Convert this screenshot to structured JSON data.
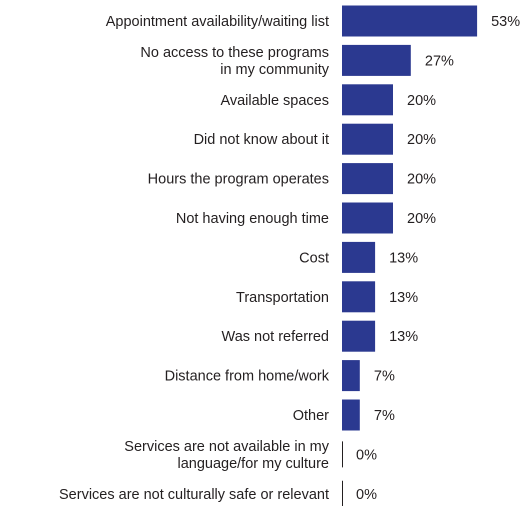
{
  "chart_data": {
    "type": "bar",
    "orientation": "horizontal",
    "categories": [
      [
        "Appointment availability/waiting list"
      ],
      [
        "No access to these programs",
        "in my community"
      ],
      [
        "Available spaces"
      ],
      [
        "Did not know about it"
      ],
      [
        "Hours the program operates"
      ],
      [
        "Not having enough time"
      ],
      [
        "Cost"
      ],
      [
        "Transportation"
      ],
      [
        "Was not referred"
      ],
      [
        "Distance from home/work"
      ],
      [
        "Other"
      ],
      [
        "Services are not available in my",
        "language/for my culture"
      ],
      [
        "Services are not culturally safe or relevant"
      ]
    ],
    "values": [
      53,
      27,
      20,
      20,
      20,
      20,
      13,
      13,
      13,
      7,
      7,
      0,
      0
    ],
    "value_labels": [
      "53%",
      "27%",
      "20%",
      "20%",
      "20%",
      "20%",
      "13%",
      "13%",
      "13%",
      "7%",
      "7%",
      "0%",
      "0%"
    ],
    "value_unit": "%",
    "bar_color": "#2b3990",
    "axis_color": "#231f20",
    "grid": false,
    "legend": "none"
  }
}
